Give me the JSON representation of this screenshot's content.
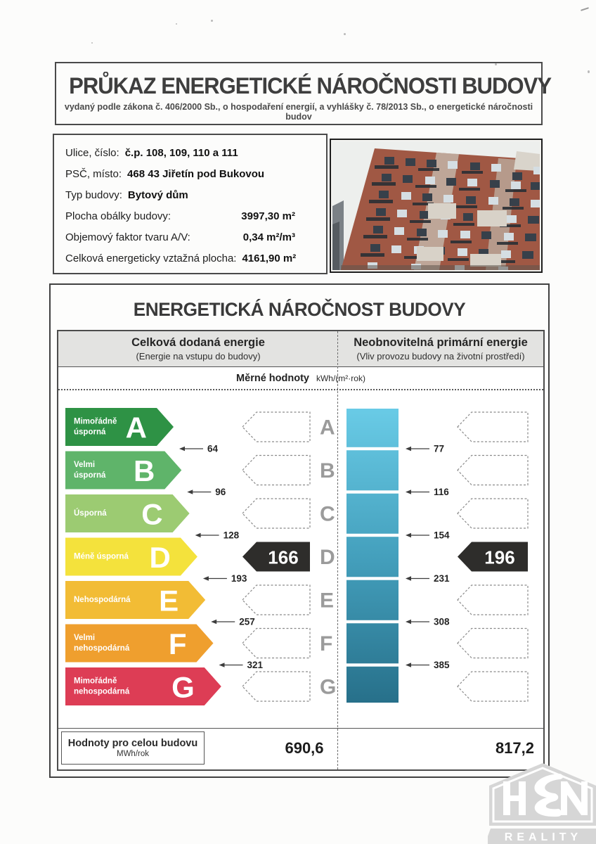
{
  "header": {
    "title": "PRŮKAZ ENERGETICKÉ NÁROČNOSTI BUDOVY",
    "subtitle": "vydaný podle zákona č. 406/2000 Sb., o hospodaření energií, a vyhlášky č. 78/2013 Sb., o energetické náročnosti budov"
  },
  "building_info": {
    "rows": [
      {
        "label": "Ulice, číslo:",
        "value": "č.p. 108, 109, 110 a 111"
      },
      {
        "label": "PSČ, místo:",
        "value": "468 43 Jiřetín pod Bukovou"
      },
      {
        "label": "Typ budovy:",
        "value": "Bytový dům"
      },
      {
        "label": "Plocha obálky budovy:",
        "value": "3997,30 m²"
      },
      {
        "label": "Objemový faktor tvaru A/V:",
        "value": "0,34 m²/m³"
      },
      {
        "label": "Celková energeticky vztažná plocha:",
        "value": "4161,90 m²"
      }
    ]
  },
  "section_title": "ENERGETICKÁ NÁROČNOST BUDOVY",
  "columns": {
    "left": {
      "title": "Celková dodaná energie",
      "subtitle": "(Energie na vstupu do budovy)"
    },
    "right": {
      "title": "Neobnovitelná primární energie",
      "subtitle": "(Vliv provozu budovy na životní prostředí)"
    }
  },
  "units_row": {
    "label": "Měrné hodnoty",
    "unit": "kWh/(m²·rok)"
  },
  "chart_data": {
    "type": "energy-rating",
    "unit": "kWh/(m²·rok)",
    "classes": [
      {
        "letter": "A",
        "label": "Mimořádně\núsporná",
        "color": "#2e9245",
        "left_threshold": 64,
        "right_threshold": 77
      },
      {
        "letter": "B",
        "label": "Velmi\núsporná",
        "color": "#5fb46a",
        "left_threshold": 96,
        "right_threshold": 116
      },
      {
        "letter": "C",
        "label": "Úsporná",
        "color": "#9ccb72",
        "left_threshold": 128,
        "right_threshold": 154
      },
      {
        "letter": "D",
        "label": "Méně úsporná",
        "color": "#f4e23c",
        "left_threshold": 193,
        "right_threshold": 231
      },
      {
        "letter": "E",
        "label": "Nehospodárná",
        "color": "#f2bc35",
        "left_threshold": 257,
        "right_threshold": 308
      },
      {
        "letter": "F",
        "label": "Velmi\nnehospodárná",
        "color": "#ef9f2e",
        "left_threshold": 321,
        "right_threshold": 385
      },
      {
        "letter": "G",
        "label": "Mimořádně\nnehospodárná",
        "color": "#dd3d55"
      }
    ],
    "rating_class": "D",
    "left_value": "166",
    "right_value": "196",
    "value_arrow_color": "#2e2d2b",
    "scale_letter_color": "#9b9b9b",
    "bar_gradient": [
      "#69cbe6",
      "#44a0bd",
      "#27708a"
    ]
  },
  "totals_row": {
    "label": "Hodnoty pro celou budovu",
    "unit": "MWh/rok",
    "left_value": "690,6",
    "right_value": "817,2"
  },
  "watermark": {
    "text": "REALITY"
  }
}
